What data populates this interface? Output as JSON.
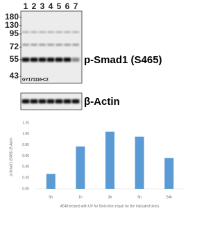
{
  "blot": {
    "lanes": [
      1,
      2,
      3,
      4,
      5,
      6,
      7
    ],
    "markers": [
      180,
      130,
      95,
      72,
      55,
      43
    ],
    "clone": "GY171116-C2",
    "target_label": "p-Smad1 (S465)",
    "control_label": "β-Actin"
  },
  "chart_data": {
    "type": "bar",
    "ylabel": "p-Smad1 (S465) /β-Actin",
    "xlabel": "A549 treated with UV for 5min then repair for the indicated  times",
    "categories": [
      "0h",
      "1h",
      "3h",
      "6h",
      "24h"
    ],
    "values": [
      0.27,
      0.77,
      1.04,
      0.95,
      0.56
    ],
    "color": "#5b9bd5",
    "ylim": [
      0,
      1.2
    ],
    "yticks": [
      {
        "value": 0,
        "label": "0.00"
      },
      {
        "value": 0.2,
        "label": "0.20"
      },
      {
        "value": 0.4,
        "label": "0.40"
      },
      {
        "value": 0.6,
        "label": "0.60"
      },
      {
        "value": 0.8,
        "label": "0.80"
      },
      {
        "value": 1,
        "label": "1.00"
      },
      {
        "value": 1.2,
        "label": "1.20"
      }
    ],
    "grid": false
  }
}
